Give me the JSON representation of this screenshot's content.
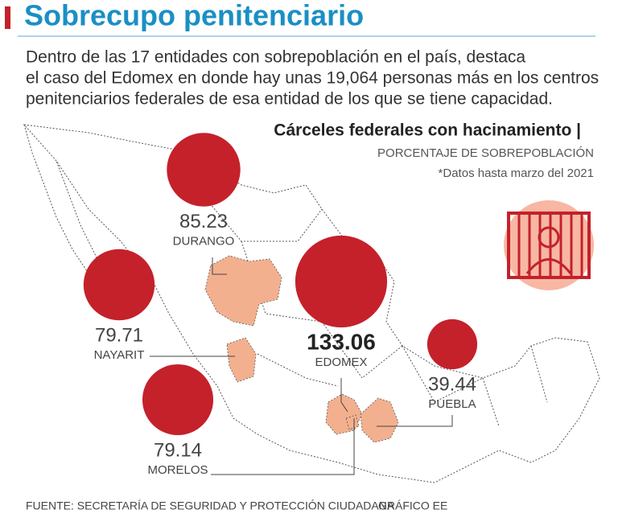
{
  "header": {
    "title": "Sobrecupo penitenciario",
    "intro": [
      "Dentro de las 17 entidades con sobrepoblación en el país, destaca",
      "el caso del Edomex en donde hay unas 19,064 personas más en los centros",
      "penitenciarios federales de esa entidad de los que se tiene capacidad."
    ]
  },
  "chart_data": {
    "type": "bubble",
    "title": "Cárceles federales con hacinamiento |",
    "subtitle": "PORCENTAJE DE SOBREPOBLACIÓN",
    "note": "*Datos hasta marzo del 2021",
    "categories": [
      "DURANGO",
      "NAYARIT",
      "EDOMEX",
      "PUEBLA",
      "MORELOS"
    ],
    "values": [
      85.23,
      79.71,
      133.06,
      39.44,
      79.14
    ],
    "color": "#c4212b"
  },
  "footer": {
    "source": "FUENTE: SECRETARÍA DE SEGURIDAD Y PROTECCIÓN CIUDADANA",
    "credit": "GRÁFICO EE"
  }
}
